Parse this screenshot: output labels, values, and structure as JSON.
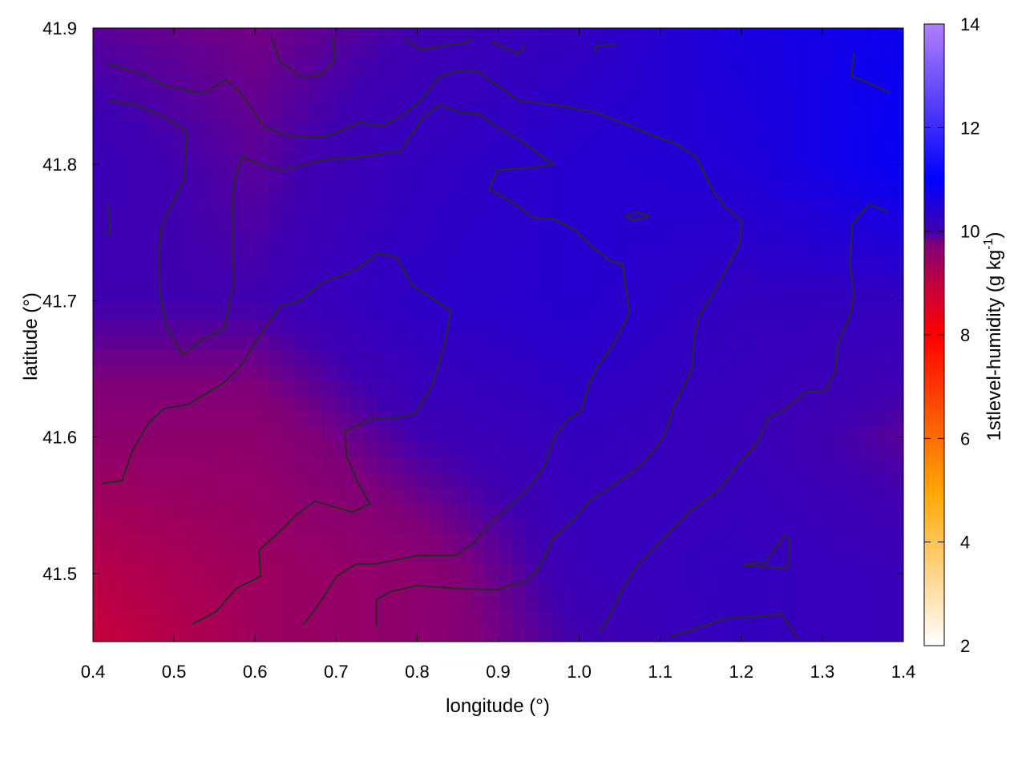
{
  "chart_data": {
    "type": "heatmap",
    "title": "",
    "xlabel": "longitude (°)",
    "ylabel": "latitude (°)",
    "colorbar_label": "1stlevel-humidity (g kg",
    "colorbar_label_sup": "-1",
    "colorbar_label_end": ")",
    "xlim": [
      0.4,
      1.4
    ],
    "ylim": [
      41.45,
      41.9
    ],
    "clim": [
      2,
      14
    ],
    "x_ticks": [
      "0.4",
      "0.5",
      "0.6",
      "0.7",
      "0.8",
      "0.9",
      "1.0",
      "1.1",
      "1.2",
      "1.3",
      "1.4"
    ],
    "y_ticks": [
      "41.5",
      "41.6",
      "41.7",
      "41.8",
      "41.9"
    ],
    "colorbar_ticks": [
      "2",
      "4",
      "6",
      "8",
      "10",
      "12",
      "14"
    ],
    "grid": false,
    "colormap": [
      [
        2,
        "#ffffff"
      ],
      [
        5,
        "#ffa500"
      ],
      [
        8,
        "#ff0000"
      ],
      [
        9,
        "#c00040"
      ],
      [
        9.75,
        "#800078"
      ],
      [
        10,
        "#4000b0"
      ],
      [
        11,
        "#0000ff"
      ],
      [
        14,
        "#b080ff"
      ]
    ],
    "contour_color": "#2a2a2a",
    "grid_lon": [
      0.4,
      0.6,
      0.8,
      1.0,
      1.2,
      1.4
    ],
    "grid_lat": [
      41.9,
      41.8,
      41.7,
      41.6,
      41.5,
      41.45
    ],
    "values": [
      [
        9.9,
        9.8,
        10.0,
        10.2,
        10.6,
        10.8
      ],
      [
        10.1,
        9.9,
        10.2,
        10.4,
        10.5,
        10.9
      ],
      [
        10.0,
        10.0,
        10.3,
        10.4,
        10.2,
        10.2
      ],
      [
        9.6,
        9.6,
        10.0,
        10.2,
        10.1,
        9.9
      ],
      [
        9.1,
        9.4,
        9.6,
        10.1,
        10.2,
        10.1
      ],
      [
        8.9,
        9.4,
        9.6,
        10.0,
        10.2,
        10.1
      ]
    ],
    "contours": [
      [
        [
          0.419,
          41.874
        ],
        [
          0.463,
          41.866
        ],
        [
          0.488,
          41.858
        ],
        [
          0.537,
          41.852
        ],
        [
          0.564,
          41.862
        ],
        [
          0.582,
          41.853
        ],
        [
          0.612,
          41.827
        ],
        [
          0.641,
          41.821
        ],
        [
          0.686,
          41.82
        ],
        [
          0.73,
          41.831
        ],
        [
          0.755,
          41.828
        ],
        [
          0.78,
          41.835
        ],
        [
          0.805,
          41.847
        ],
        [
          0.827,
          41.864
        ],
        [
          0.851,
          41.869
        ],
        [
          0.877,
          41.868
        ],
        [
          0.903,
          41.856
        ],
        [
          0.926,
          41.847
        ],
        [
          0.978,
          41.843
        ],
        [
          1.022,
          41.838
        ],
        [
          1.057,
          41.83
        ],
        [
          1.096,
          41.82
        ],
        [
          1.116,
          41.816
        ],
        [
          1.144,
          41.806
        ],
        [
          1.166,
          41.78
        ],
        [
          1.18,
          41.769
        ],
        [
          1.2,
          41.759
        ],
        [
          1.198,
          41.742
        ],
        [
          1.18,
          41.721
        ],
        [
          1.161,
          41.701
        ],
        [
          1.148,
          41.689
        ],
        [
          1.142,
          41.674
        ],
        [
          1.14,
          41.651
        ],
        [
          1.116,
          41.621
        ],
        [
          1.104,
          41.599
        ],
        [
          1.077,
          41.58
        ],
        [
          1.057,
          41.571
        ],
        [
          1.037,
          41.563
        ],
        [
          1.012,
          41.553
        ],
        [
          0.992,
          41.539
        ],
        [
          0.968,
          41.526
        ],
        [
          0.95,
          41.504
        ],
        [
          0.936,
          41.495
        ],
        [
          0.897,
          41.488
        ],
        [
          0.849,
          41.489
        ],
        [
          0.8,
          41.491
        ],
        [
          0.768,
          41.487
        ],
        [
          0.75,
          41.481
        ],
        [
          0.75,
          41.461
        ]
      ],
      [
        [
          0.659,
          41.462
        ],
        [
          0.676,
          41.475
        ],
        [
          0.701,
          41.498
        ],
        [
          0.725,
          41.507
        ],
        [
          0.75,
          41.507
        ],
        [
          0.8,
          41.513
        ],
        [
          0.847,
          41.513
        ],
        [
          0.869,
          41.522
        ],
        [
          0.894,
          41.539
        ],
        [
          0.918,
          41.551
        ],
        [
          0.943,
          41.566
        ],
        [
          0.958,
          41.58
        ],
        [
          0.97,
          41.601
        ],
        [
          0.986,
          41.613
        ],
        [
          1.003,
          41.62
        ],
        [
          1.012,
          41.639
        ],
        [
          1.022,
          41.651
        ],
        [
          1.042,
          41.668
        ],
        [
          1.062,
          41.691
        ],
        [
          1.053,
          41.727
        ],
        [
          1.039,
          41.729
        ],
        [
          1.017,
          41.739
        ],
        [
          0.995,
          41.752
        ],
        [
          0.968,
          41.76
        ],
        [
          0.943,
          41.761
        ],
        [
          0.923,
          41.77
        ],
        [
          0.889,
          41.782
        ],
        [
          0.899,
          41.796
        ],
        [
          0.928,
          41.797
        ],
        [
          0.968,
          41.8
        ],
        [
          0.93,
          41.817
        ],
        [
          0.9,
          41.827
        ],
        [
          0.877,
          41.837
        ],
        [
          0.854,
          41.838
        ],
        [
          0.827,
          41.844
        ],
        [
          0.805,
          41.833
        ],
        [
          0.78,
          41.81
        ],
        [
          0.735,
          41.806
        ],
        [
          0.681,
          41.803
        ],
        [
          0.636,
          41.796
        ],
        [
          0.61,
          41.799
        ],
        [
          0.584,
          41.806
        ],
        [
          0.574,
          41.786
        ],
        [
          0.572,
          41.75
        ],
        [
          0.574,
          41.715
        ],
        [
          0.567,
          41.695
        ],
        [
          0.562,
          41.679
        ],
        [
          0.533,
          41.671
        ],
        [
          0.511,
          41.66
        ],
        [
          0.491,
          41.681
        ],
        [
          0.483,
          41.704
        ],
        [
          0.481,
          41.733
        ],
        [
          0.485,
          41.756
        ],
        [
          0.513,
          41.789
        ],
        [
          0.516,
          41.824
        ],
        [
          0.488,
          41.835
        ],
        [
          0.453,
          41.844
        ],
        [
          0.419,
          41.847
        ]
      ],
      [
        [
          0.412,
          41.566
        ],
        [
          0.436,
          41.568
        ],
        [
          0.448,
          41.589
        ],
        [
          0.468,
          41.61
        ],
        [
          0.488,
          41.621
        ],
        [
          0.518,
          41.624
        ],
        [
          0.562,
          41.64
        ],
        [
          0.582,
          41.652
        ],
        [
          0.612,
          41.68
        ],
        [
          0.631,
          41.696
        ],
        [
          0.656,
          41.7
        ],
        [
          0.681,
          41.713
        ],
        [
          0.725,
          41.723
        ],
        [
          0.752,
          41.735
        ],
        [
          0.775,
          41.732
        ],
        [
          0.793,
          41.712
        ],
        [
          0.841,
          41.693
        ],
        [
          0.834,
          41.668
        ],
        [
          0.819,
          41.639
        ],
        [
          0.798,
          41.617
        ],
        [
          0.77,
          41.614
        ],
        [
          0.745,
          41.614
        ],
        [
          0.711,
          41.604
        ],
        [
          0.713,
          41.586
        ],
        [
          0.725,
          41.569
        ],
        [
          0.742,
          41.551
        ],
        [
          0.72,
          41.545
        ],
        [
          0.674,
          41.553
        ],
        [
          0.651,
          41.543
        ],
        [
          0.631,
          41.531
        ],
        [
          0.605,
          41.517
        ],
        [
          0.607,
          41.498
        ],
        [
          0.577,
          41.489
        ],
        [
          0.552,
          41.472
        ],
        [
          0.523,
          41.463
        ]
      ],
      [
        [
          1.025,
          41.457
        ],
        [
          1.037,
          41.468
        ],
        [
          1.052,
          41.487
        ],
        [
          1.069,
          41.504
        ],
        [
          1.108,
          41.528
        ],
        [
          1.136,
          41.545
        ],
        [
          1.175,
          41.563
        ],
        [
          1.195,
          41.579
        ],
        [
          1.22,
          41.596
        ],
        [
          1.233,
          41.614
        ],
        [
          1.255,
          41.621
        ],
        [
          1.279,
          41.633
        ],
        [
          1.304,
          41.634
        ],
        [
          1.316,
          41.649
        ],
        [
          1.319,
          41.668
        ],
        [
          1.334,
          41.689
        ],
        [
          1.339,
          41.705
        ],
        [
          1.334,
          41.727
        ],
        [
          1.337,
          41.756
        ],
        [
          1.358,
          41.771
        ],
        [
          1.381,
          41.765
        ]
      ],
      [
        [
          1.112,
          41.454
        ],
        [
          1.146,
          41.46
        ],
        [
          1.18,
          41.467
        ],
        [
          1.25,
          41.47
        ],
        [
          1.269,
          41.453
        ]
      ],
      [
        [
          1.339,
          41.882
        ],
        [
          1.336,
          41.865
        ],
        [
          1.383,
          41.853
        ]
      ],
      [
        [
          1.205,
          41.507
        ],
        [
          1.23,
          41.508
        ],
        [
          1.253,
          41.528
        ],
        [
          1.26,
          41.525
        ],
        [
          1.258,
          41.504
        ],
        [
          1.203,
          41.506
        ]
      ],
      [
        [
          0.62,
          41.894
        ],
        [
          0.631,
          41.875
        ],
        [
          0.659,
          41.864
        ],
        [
          0.683,
          41.866
        ],
        [
          0.699,
          41.877
        ],
        [
          0.696,
          41.894
        ]
      ],
      [
        [
          0.785,
          41.892
        ],
        [
          0.805,
          41.884
        ],
        [
          0.869,
          41.891
        ]
      ],
      [
        [
          0.891,
          41.89
        ],
        [
          0.926,
          41.881
        ],
        [
          0.933,
          41.888
        ]
      ],
      [
        [
          1.022,
          41.882
        ],
        [
          1.02,
          41.887
        ],
        [
          1.047,
          41.888
        ]
      ],
      [
        [
          1.057,
          41.762
        ],
        [
          1.072,
          41.765
        ],
        [
          1.086,
          41.762
        ],
        [
          1.069,
          41.759
        ],
        [
          1.057,
          41.762
        ]
      ],
      [
        [
          0.419,
          41.771
        ],
        [
          0.421,
          41.75
        ],
        [
          0.417,
          41.748
        ]
      ]
    ]
  }
}
